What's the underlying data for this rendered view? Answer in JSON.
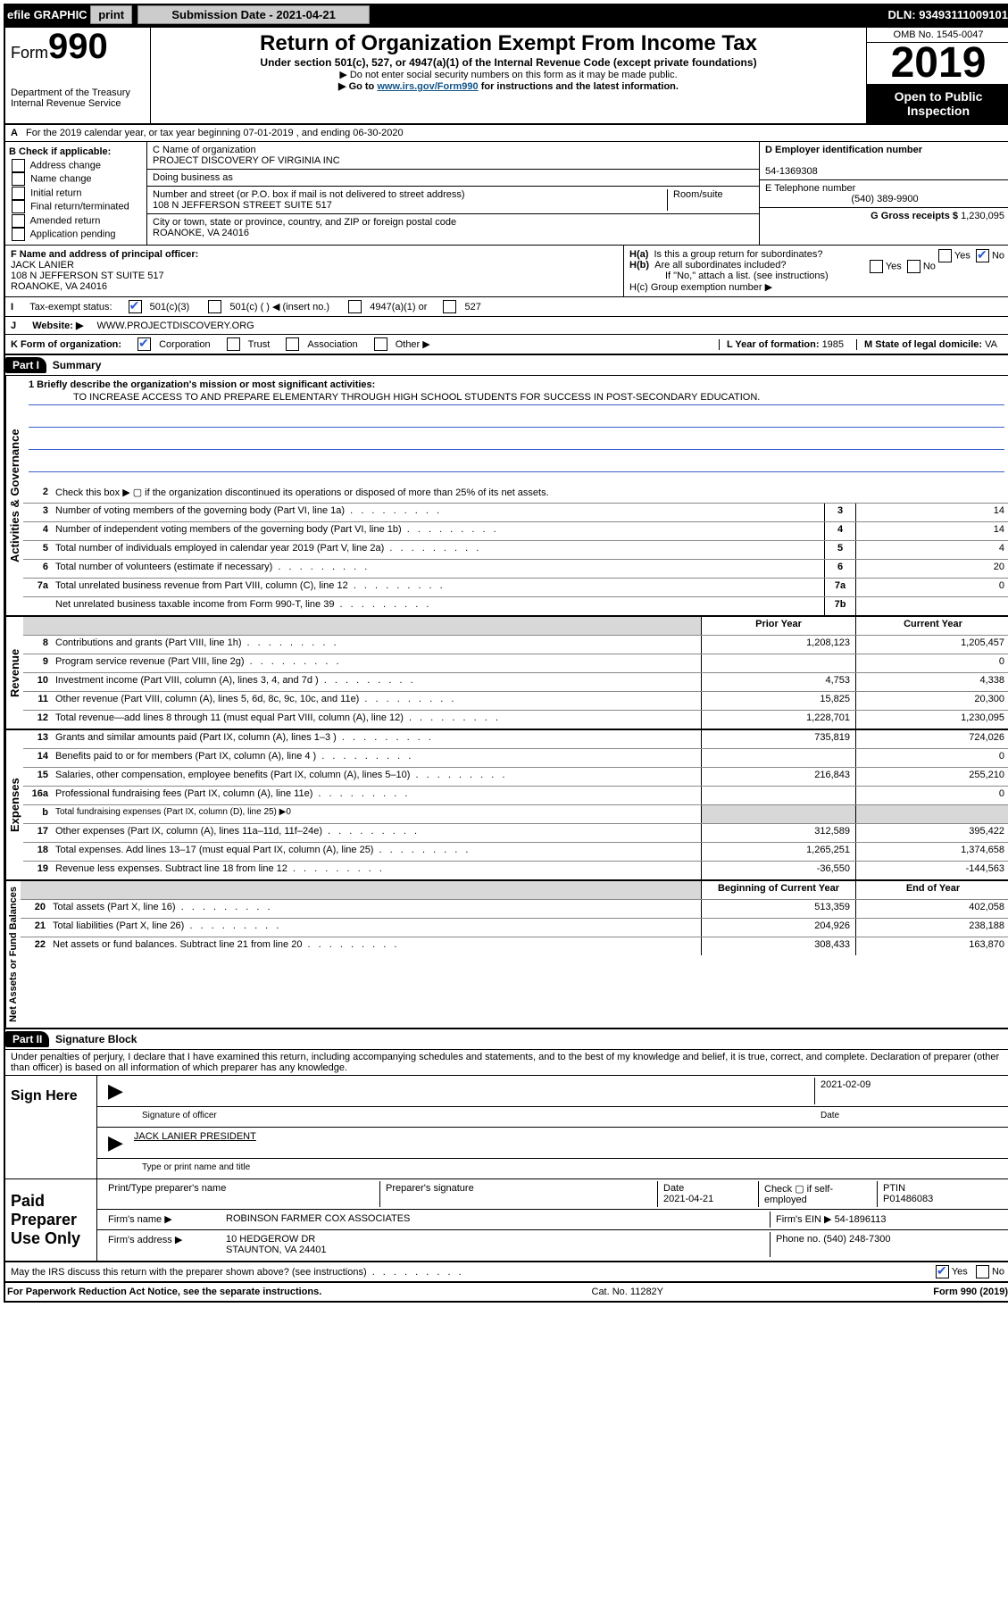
{
  "topbar": {
    "efile": "efile GRAPHIC",
    "print": "print",
    "subdate_label": "Submission Date - 2021-04-21",
    "dln": "DLN: 93493111009101"
  },
  "header": {
    "form_prefix": "Form",
    "form_no": "990",
    "dept": "Department of the Treasury Internal Revenue Service",
    "title": "Return of Organization Exempt From Income Tax",
    "subtitle": "Under section 501(c), 527, or 4947(a)(1) of the Internal Revenue Code (except private foundations)",
    "note1": "▶ Do not enter social security numbers on this form as it may be made public.",
    "note2_pre": "▶ Go to ",
    "note2_link": "www.irs.gov/Form990",
    "note2_post": " for instructions and the latest information.",
    "omb": "OMB No. 1545-0047",
    "year": "2019",
    "open": "Open to Public Inspection"
  },
  "lineA": "For the 2019 calendar year, or tax year beginning 07-01-2019   , and ending 06-30-2020",
  "boxB": {
    "title": "B Check if applicable:",
    "items": [
      "Address change",
      "Name change",
      "Initial return",
      "Final return/terminated",
      "Amended return",
      "Application pending"
    ]
  },
  "boxC": {
    "name_label": "C Name of organization",
    "name": "PROJECT DISCOVERY OF VIRGINIA INC",
    "dba_label": "Doing business as",
    "addr_label": "Number and street (or P.O. box if mail is not delivered to street address)",
    "room_label": "Room/suite",
    "addr": "108 N JEFFERSON STREET SUITE 517",
    "city_label": "City or town, state or province, country, and ZIP or foreign postal code",
    "city": "ROANOKE, VA  24016"
  },
  "boxD": {
    "label": "D Employer identification number",
    "val": "54-1369308"
  },
  "boxE": {
    "label": "E Telephone number",
    "val": "(540) 389-9900"
  },
  "boxG": {
    "label": "G Gross receipts $",
    "val": "1,230,095"
  },
  "boxF": {
    "label": "F  Name and address of principal officer:",
    "name": "JACK LANIER",
    "addr1": "108 N JEFFERSON ST SUITE 517",
    "addr2": "ROANOKE, VA  24016"
  },
  "boxH": {
    "a": "H(a)  Is this a group return for subordinates?",
    "b": "H(b)  Are all subordinates included?",
    "b_note": "If \"No,\" attach a list. (see instructions)",
    "c": "H(c)  Group exemption number ▶"
  },
  "boxI": {
    "label": "Tax-exempt status:",
    "opts": [
      "501(c)(3)",
      "501(c) (  ) ◀ (insert no.)",
      "4947(a)(1) or",
      "527"
    ]
  },
  "boxJ": {
    "label": "Website: ▶",
    "val": "WWW.PROJECTDISCOVERY.ORG"
  },
  "boxK": {
    "label": "K Form of organization:",
    "opts": [
      "Corporation",
      "Trust",
      "Association",
      "Other ▶"
    ]
  },
  "boxL": {
    "label": "L Year of formation:",
    "val": "1985"
  },
  "boxM": {
    "label": "M State of legal domicile:",
    "val": "VA"
  },
  "part1": {
    "tag": "Part I",
    "title": "Summary"
  },
  "mission": {
    "q": "1  Briefly describe the organization's mission or most significant activities:",
    "text": "TO INCREASE ACCESS TO AND PREPARE ELEMENTARY THROUGH HIGH SCHOOL STUDENTS FOR SUCCESS IN POST-SECONDARY EDUCATION."
  },
  "govlines": {
    "l2": "Check this box ▶ ▢  if the organization discontinued its operations or disposed of more than 25% of its net assets.",
    "l3": {
      "t": "Number of voting members of the governing body (Part VI, line 1a)",
      "n": "3",
      "v": "14"
    },
    "l4": {
      "t": "Number of independent voting members of the governing body (Part VI, line 1b)",
      "n": "4",
      "v": "14"
    },
    "l5": {
      "t": "Total number of individuals employed in calendar year 2019 (Part V, line 2a)",
      "n": "5",
      "v": "4"
    },
    "l6": {
      "t": "Total number of volunteers (estimate if necessary)",
      "n": "6",
      "v": "20"
    },
    "l7a": {
      "t": "Total unrelated business revenue from Part VIII, column (C), line 12",
      "n": "7a",
      "v": "0"
    },
    "l7b": {
      "t": "Net unrelated business taxable income from Form 990-T, line 39",
      "n": "7b",
      "v": ""
    }
  },
  "colhead": {
    "prior": "Prior Year",
    "cur": "Current Year",
    "begin": "Beginning of Current Year",
    "end": "End of Year"
  },
  "revenue": [
    {
      "n": "8",
      "t": "Contributions and grants (Part VIII, line 1h)",
      "p": "1,208,123",
      "c": "1,205,457"
    },
    {
      "n": "9",
      "t": "Program service revenue (Part VIII, line 2g)",
      "p": "",
      "c": "0"
    },
    {
      "n": "10",
      "t": "Investment income (Part VIII, column (A), lines 3, 4, and 7d )",
      "p": "4,753",
      "c": "4,338"
    },
    {
      "n": "11",
      "t": "Other revenue (Part VIII, column (A), lines 5, 6d, 8c, 9c, 10c, and 11e)",
      "p": "15,825",
      "c": "20,300"
    },
    {
      "n": "12",
      "t": "Total revenue—add lines 8 through 11 (must equal Part VIII, column (A), line 12)",
      "p": "1,228,701",
      "c": "1,230,095"
    }
  ],
  "expenses": [
    {
      "n": "13",
      "t": "Grants and similar amounts paid (Part IX, column (A), lines 1–3 )",
      "p": "735,819",
      "c": "724,026"
    },
    {
      "n": "14",
      "t": "Benefits paid to or for members (Part IX, column (A), line 4  )",
      "p": "",
      "c": "0"
    },
    {
      "n": "15",
      "t": "Salaries, other compensation, employee benefits (Part IX, column (A), lines 5–10)",
      "p": "216,843",
      "c": "255,210"
    },
    {
      "n": "16a",
      "t": "Professional fundraising fees (Part IX, column (A), line 11e)",
      "p": "",
      "c": "0"
    },
    {
      "n": "b",
      "t": "Total fundraising expenses (Part IX, column (D), line 25) ▶0",
      "sub": true
    },
    {
      "n": "17",
      "t": "Other expenses (Part IX, column (A), lines 11a–11d, 11f–24e)",
      "p": "312,589",
      "c": "395,422"
    },
    {
      "n": "18",
      "t": "Total expenses. Add lines 13–17 (must equal Part IX, column (A), line 25)",
      "p": "1,265,251",
      "c": "1,374,658"
    },
    {
      "n": "19",
      "t": "Revenue less expenses. Subtract line 18 from line 12",
      "p": "-36,550",
      "c": "-144,563"
    }
  ],
  "netassets": [
    {
      "n": "20",
      "t": "Total assets (Part X, line 16)",
      "p": "513,359",
      "c": "402,058"
    },
    {
      "n": "21",
      "t": "Total liabilities (Part X, line 26)",
      "p": "204,926",
      "c": "238,188"
    },
    {
      "n": "22",
      "t": "Net assets or fund balances. Subtract line 21 from line 20",
      "p": "308,433",
      "c": "163,870"
    }
  ],
  "part2": {
    "tag": "Part II",
    "title": "Signature Block"
  },
  "perjury": "Under penalties of perjury, I declare that I have examined this return, including accompanying schedules and statements, and to the best of my knowledge and belief, it is true, correct, and complete. Declaration of preparer (other than officer) is based on all information of which preparer has any knowledge.",
  "sign": {
    "left": "Sign Here",
    "date": "2021-02-09",
    "sig_label": "Signature of officer",
    "date_label": "Date",
    "name": "JACK LANIER  PRESIDENT",
    "name_label": "Type or print name and title"
  },
  "paid": {
    "left": "Paid Preparer Use Only",
    "h1": "Print/Type preparer's name",
    "h2": "Preparer's signature",
    "h3_l": "Date",
    "h3_v": "2021-04-21",
    "h4": "Check ▢ if self-employed",
    "h5_l": "PTIN",
    "h5_v": "P01486083",
    "firm_label": "Firm's name     ▶",
    "firm": "ROBINSON FARMER COX ASSOCIATES",
    "ein_label": "Firm's EIN ▶",
    "ein": "54-1896113",
    "addr_label": "Firm's address ▶",
    "addr1": "10 HEDGEROW DR",
    "addr2": "STAUNTON, VA  24401",
    "phone_label": "Phone no.",
    "phone": "(540) 248-7300"
  },
  "discuss": "May the IRS discuss this return with the preparer shown above? (see instructions)",
  "footer": {
    "left": "For Paperwork Reduction Act Notice, see the separate instructions.",
    "mid": "Cat. No. 11282Y",
    "right": "Form 990 (2019)"
  },
  "labels": {
    "yes": "Yes",
    "no": "No",
    "sections": {
      "gov": "Activities & Governance",
      "rev": "Revenue",
      "exp": "Expenses",
      "net": "Net Assets or Fund Balances"
    }
  }
}
